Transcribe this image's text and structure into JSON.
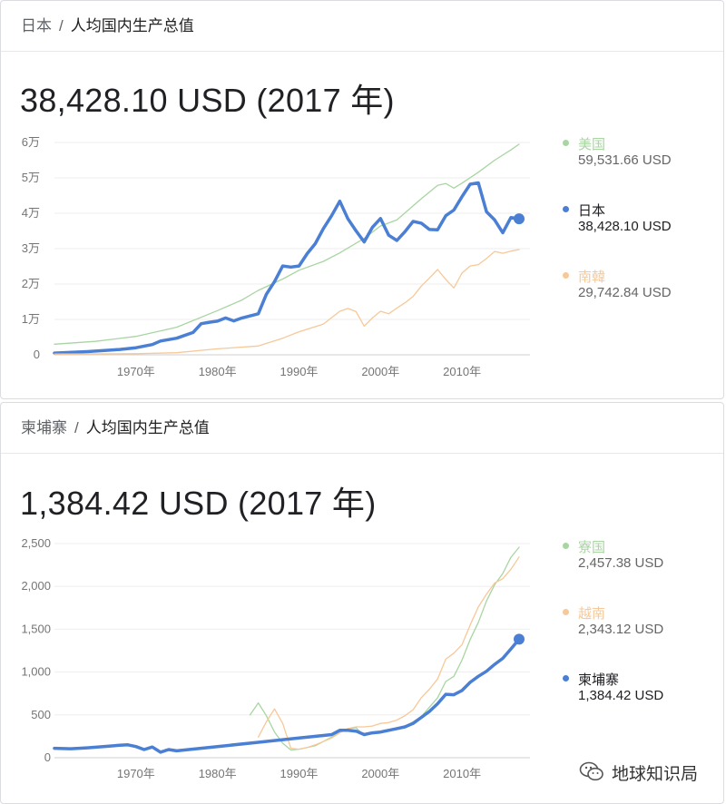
{
  "panel1": {
    "breadcrumb": {
      "country": "日本",
      "separator": "/",
      "indicator": "人均国内生产总值"
    },
    "headline": "38,428.10 USD (2017 年)",
    "legend": [
      {
        "name": "美国",
        "value": "59,531.66 USD",
        "color": "#a8d5a2"
      },
      {
        "name": "日本",
        "value": "38,428.10 USD",
        "color": "#4a7fd4"
      },
      {
        "name": "南韓",
        "value": "29,742.84 USD",
        "color": "#f7c898"
      }
    ]
  },
  "panel2": {
    "breadcrumb": {
      "country": "柬埔寨",
      "separator": "/",
      "indicator": "人均国内生产总值"
    },
    "headline": "1,384.42 USD (2017 年)",
    "legend": [
      {
        "name": "寮国",
        "value": "2,457.38 USD",
        "color": "#a8d5a2"
      },
      {
        "name": "越南",
        "value": "2,343.12 USD",
        "color": "#f7c898"
      },
      {
        "name": "柬埔寨",
        "value": "1,384.42 USD",
        "color": "#4a7fd4"
      }
    ]
  },
  "watermark": "地球知识局",
  "chart_data": [
    {
      "type": "line",
      "x_tick_labels": [
        "1970年",
        "1980年",
        "1990年",
        "2000年",
        "2010年"
      ],
      "x_ticks": [
        1970,
        1980,
        1990,
        2000,
        2010
      ],
      "y_tick_labels": [
        "0",
        "1万",
        "2万",
        "3万",
        "4万",
        "5万",
        "6万"
      ],
      "y_ticks": [
        0,
        10000,
        20000,
        30000,
        40000,
        50000,
        60000
      ],
      "xlim": [
        1960,
        2017
      ],
      "ylim": [
        0,
        60000
      ],
      "grid": true,
      "legend_position": "right",
      "series": [
        {
          "name": "美国",
          "color": "#a8d5a2",
          "width": 1.3,
          "endpoint": false,
          "x": [
            1960,
            1965,
            1970,
            1975,
            1980,
            1983,
            1985,
            1988,
            1990,
            1993,
            1995,
            1998,
            2000,
            2002,
            2005,
            2007,
            2008,
            2009,
            2010,
            2012,
            2014,
            2016,
            2017
          ],
          "y": [
            3000,
            3800,
            5200,
            7800,
            12500,
            15500,
            18200,
            21400,
            23900,
            26400,
            28800,
            32900,
            36400,
            38100,
            44100,
            47900,
            48400,
            47100,
            48500,
            51600,
            55000,
            57900,
            59500
          ]
        },
        {
          "name": "日本",
          "color": "#4a7fd4",
          "width": 3.5,
          "endpoint": true,
          "x": [
            1960,
            1964,
            1968,
            1970,
            1972,
            1973,
            1975,
            1977,
            1978,
            1979,
            1980,
            1981,
            1982,
            1983,
            1985,
            1986,
            1987,
            1988,
            1989,
            1990,
            1991,
            1992,
            1993,
            1994,
            1995,
            1996,
            1997,
            1998,
            1999,
            2000,
            2001,
            2002,
            2003,
            2004,
            2005,
            2006,
            2007,
            2008,
            2009,
            2010,
            2011,
            2012,
            2013,
            2014,
            2015,
            2016,
            2017
          ],
          "y": [
            500,
            900,
            1500,
            2000,
            2900,
            3900,
            4700,
            6300,
            8800,
            9200,
            9500,
            10400,
            9600,
            10400,
            11600,
            17100,
            20700,
            25100,
            24800,
            25100,
            28600,
            31400,
            35700,
            39300,
            43400,
            38400,
            35000,
            31900,
            36000,
            38500,
            33800,
            32300,
            34800,
            37700,
            37200,
            35400,
            35300,
            39300,
            40900,
            44700,
            48200,
            48600,
            40400,
            38100,
            34500,
            38800,
            38428
          ]
        },
        {
          "name": "南韓",
          "color": "#f7c898",
          "width": 1.3,
          "endpoint": false,
          "x": [
            1960,
            1970,
            1975,
            1980,
            1985,
            1988,
            1990,
            1993,
            1995,
            1996,
            1997,
            1998,
            1999,
            2000,
            2001,
            2002,
            2003,
            2004,
            2005,
            2006,
            2007,
            2008,
            2009,
            2010,
            2011,
            2012,
            2013,
            2014,
            2015,
            2016,
            2017
          ],
          "y": [
            200,
            300,
            600,
            1700,
            2500,
            4700,
            6500,
            8700,
            12300,
            13100,
            12200,
            8100,
            10400,
            12300,
            11600,
            13200,
            14700,
            16500,
            19400,
            21700,
            24100,
            21300,
            18900,
            23100,
            25100,
            25500,
            27200,
            29200,
            28700,
            29300,
            29742
          ]
        }
      ]
    },
    {
      "type": "line",
      "x_tick_labels": [
        "1970年",
        "1980年",
        "1990年",
        "2000年",
        "2010年"
      ],
      "x_ticks": [
        1970,
        1980,
        1990,
        2000,
        2010
      ],
      "y_tick_labels": [
        "0",
        "500",
        "1,000",
        "1,500",
        "2,000",
        "2,500"
      ],
      "y_ticks": [
        0,
        500,
        1000,
        1500,
        2000,
        2500
      ],
      "xlim": [
        1960,
        2017
      ],
      "ylim": [
        0,
        2500
      ],
      "grid": true,
      "legend_position": "right",
      "series": [
        {
          "name": "寮国",
          "color": "#a8d5a2",
          "width": 1.3,
          "endpoint": false,
          "x": [
            1984,
            1985,
            1986,
            1987,
            1988,
            1989,
            1990,
            1991,
            1992,
            1993,
            1994,
            1995,
            1996,
            1997,
            1998,
            1999,
            2000,
            2001,
            2002,
            2003,
            2004,
            2005,
            2006,
            2007,
            2008,
            2009,
            2010,
            2011,
            2012,
            2013,
            2014,
            2015,
            2016,
            2017
          ],
          "y": [
            500,
            640,
            490,
            300,
            170,
            90,
            100,
            120,
            140,
            190,
            240,
            300,
            340,
            350,
            260,
            290,
            310,
            330,
            340,
            370,
            420,
            480,
            590,
            700,
            890,
            950,
            1140,
            1380,
            1580,
            1830,
            2020,
            2150,
            2340,
            2457
          ]
        },
        {
          "name": "越南",
          "color": "#f7c898",
          "width": 1.3,
          "endpoint": false,
          "x": [
            1985,
            1986,
            1987,
            1988,
            1989,
            1990,
            1991,
            1992,
            1993,
            1994,
            1995,
            1996,
            1997,
            1998,
            1999,
            2000,
            2001,
            2002,
            2003,
            2004,
            2005,
            2006,
            2007,
            2008,
            2009,
            2010,
            2011,
            2012,
            2013,
            2014,
            2015,
            2016,
            2017
          ],
          "y": [
            240,
            420,
            570,
            400,
            110,
            100,
            120,
            150,
            190,
            230,
            290,
            340,
            360,
            360,
            370,
            400,
            410,
            440,
            490,
            560,
            700,
            800,
            920,
            1150,
            1220,
            1320,
            1550,
            1760,
            1910,
            2040,
            2090,
            2200,
            2343
          ]
        },
        {
          "name": "柬埔寨",
          "color": "#4a7fd4",
          "width": 3.5,
          "endpoint": true,
          "x": [
            1960,
            1962,
            1964,
            1966,
            1968,
            1969,
            1970,
            1971,
            1972,
            1973,
            1974,
            1975,
            1980,
            1985,
            1990,
            1993,
            1994,
            1995,
            1996,
            1997,
            1998,
            1999,
            2000,
            2001,
            2002,
            2003,
            2004,
            2005,
            2006,
            2007,
            2008,
            2009,
            2010,
            2011,
            2012,
            2013,
            2014,
            2015,
            2016,
            2017
          ],
          "y": [
            110,
            105,
            115,
            130,
            145,
            150,
            130,
            95,
            125,
            65,
            95,
            80,
            130,
            180,
            230,
            260,
            270,
            320,
            320,
            310,
            270,
            290,
            300,
            320,
            340,
            360,
            400,
            470,
            540,
            630,
            740,
            735,
            785,
            880,
            950,
            1010,
            1090,
            1160,
            1270,
            1384
          ]
        }
      ]
    }
  ]
}
